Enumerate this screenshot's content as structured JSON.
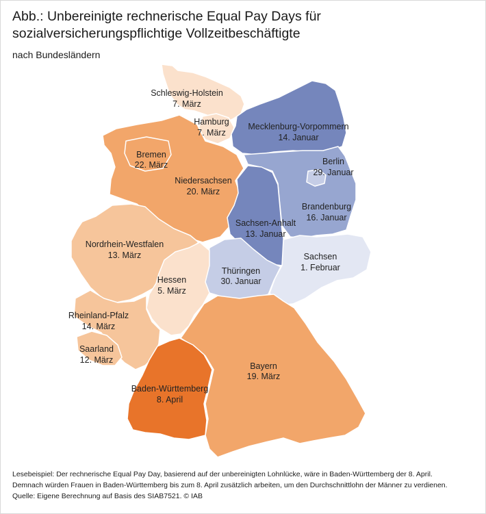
{
  "title": "Abb.: Unbereinigte rechnerische Equal Pay Days für sozialversicherungspflichtige Vollzeitbeschäftigte",
  "subtitle": "nach Bundesländern",
  "colors": {
    "dark_orange": "#e8742a",
    "orange": "#f2a66a",
    "light_orange": "#f6c59b",
    "pale_orange": "#fbe1cc",
    "dark_blue": "#7586bc",
    "mid_blue": "#97a6d0",
    "light_blue": "#c5cde6",
    "pale_blue": "#e3e7f3"
  },
  "states": [
    {
      "name": "Schleswig-Holstein",
      "date": "7. März",
      "color": "pale_orange"
    },
    {
      "name": "Hamburg",
      "date": "7. März",
      "color": "pale_orange"
    },
    {
      "name": "Mecklenburg-Vorpommern",
      "date": "14. Januar",
      "color": "dark_blue"
    },
    {
      "name": "Bremen",
      "date": "22. März",
      "color": "orange"
    },
    {
      "name": "Berlin",
      "date": "29. Januar",
      "color": "light_blue"
    },
    {
      "name": "Niedersachsen",
      "date": "20. März",
      "color": "orange"
    },
    {
      "name": "Brandenburg",
      "date": "16. Januar",
      "color": "mid_blue"
    },
    {
      "name": "Sachsen-Anhalt",
      "date": "13. Januar",
      "color": "dark_blue"
    },
    {
      "name": "Nordrhein-Westfalen",
      "date": "13. März",
      "color": "light_orange"
    },
    {
      "name": "Sachsen",
      "date": "1. Februar",
      "color": "pale_blue"
    },
    {
      "name": "Thüringen",
      "date": "30. Januar",
      "color": "light_blue"
    },
    {
      "name": "Hessen",
      "date": "5. März",
      "color": "pale_orange"
    },
    {
      "name": "Rheinland-Pfalz",
      "date": "14. März",
      "color": "light_orange"
    },
    {
      "name": "Saarland",
      "date": "12. März",
      "color": "light_orange"
    },
    {
      "name": "Bayern",
      "date": "19. März",
      "color": "orange"
    },
    {
      "name": "Baden-Württemberg",
      "date": "8. April",
      "color": "dark_orange"
    }
  ],
  "notes": {
    "line1": "Lesebeispiel: Der rechnerische Equal Pay Day, basierend auf der unbereinigten Lohnlücke, wäre in Baden-Württemberg der 8. April.",
    "line2": "Demnach würden Frauen in Baden-Württemberg bis zum 8. April zusätzlich arbeiten, um den Durchschnittlohn der Männer zu verdienen.",
    "line3": "Quelle: Eigene Berechnung auf Basis des SIAB7521.  © IAB"
  }
}
